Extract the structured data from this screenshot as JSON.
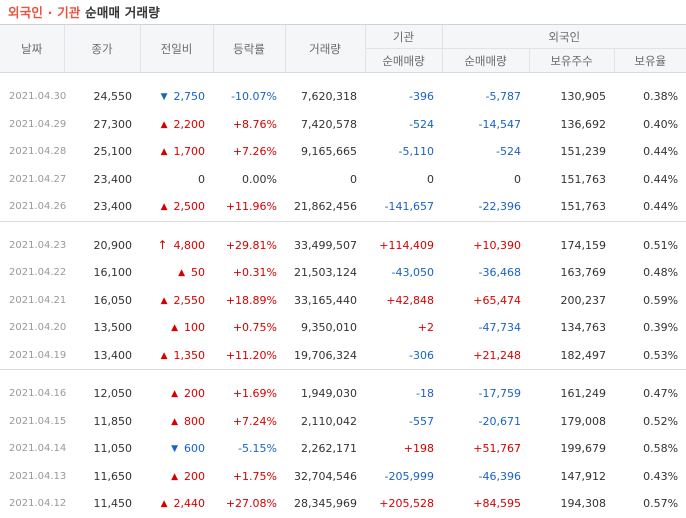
{
  "header": {
    "title_part1": "외국인",
    "separator": "·",
    "title_part2": "기관",
    "title_part3": "순매매 거래량"
  },
  "columns": {
    "date": "날짜",
    "close": "종가",
    "change": "전일비",
    "rate": "등락률",
    "volume": "거래량",
    "inst_group": "기관",
    "foreign_group": "외국인",
    "inst_net": "순매매량",
    "foreign_net": "순매매량",
    "foreign_holdings": "보유주수",
    "foreign_ratio": "보유율"
  },
  "colors": {
    "up": "#d60000",
    "down": "#1a62c7",
    "title_accent": "#e8543f"
  },
  "groups": [
    [
      {
        "date": "2021.04.30",
        "close": "24,550",
        "dir": "down",
        "arrow": "▼",
        "change": "2,750",
        "rate": "-10.07%",
        "volume": "7,620,318",
        "inst": "-396",
        "foreign": "-5,787",
        "holdings": "130,905",
        "ratio": "0.38%"
      },
      {
        "date": "2021.04.29",
        "close": "27,300",
        "dir": "up",
        "arrow": "▲",
        "change": "2,200",
        "rate": "+8.76%",
        "volume": "7,420,578",
        "inst": "-524",
        "foreign": "-14,547",
        "holdings": "136,692",
        "ratio": "0.40%"
      },
      {
        "date": "2021.04.28",
        "close": "25,100",
        "dir": "up",
        "arrow": "▲",
        "change": "1,700",
        "rate": "+7.26%",
        "volume": "9,165,665",
        "inst": "-5,110",
        "foreign": "-524",
        "holdings": "151,239",
        "ratio": "0.44%"
      },
      {
        "date": "2021.04.27",
        "close": "23,400",
        "dir": "neu",
        "arrow": "",
        "change": "0",
        "rate": "0.00%",
        "volume": "0",
        "inst": "0",
        "foreign": "0",
        "holdings": "151,763",
        "ratio": "0.44%"
      },
      {
        "date": "2021.04.26",
        "close": "23,400",
        "dir": "up",
        "arrow": "▲",
        "change": "2,500",
        "rate": "+11.96%",
        "volume": "21,862,456",
        "inst": "-141,657",
        "foreign": "-22,396",
        "holdings": "151,763",
        "ratio": "0.44%"
      }
    ],
    [
      {
        "date": "2021.04.23",
        "close": "20,900",
        "dir": "up",
        "arrow": "↑",
        "limit": true,
        "change": "4,800",
        "rate": "+29.81%",
        "volume": "33,499,507",
        "inst": "+114,409",
        "foreign": "+10,390",
        "holdings": "174,159",
        "ratio": "0.51%"
      },
      {
        "date": "2021.04.22",
        "close": "16,100",
        "dir": "up",
        "arrow": "▲",
        "change": "50",
        "rate": "+0.31%",
        "volume": "21,503,124",
        "inst": "-43,050",
        "foreign": "-36,468",
        "holdings": "163,769",
        "ratio": "0.48%"
      },
      {
        "date": "2021.04.21",
        "close": "16,050",
        "dir": "up",
        "arrow": "▲",
        "change": "2,550",
        "rate": "+18.89%",
        "volume": "33,165,440",
        "inst": "+42,848",
        "foreign": "+65,474",
        "holdings": "200,237",
        "ratio": "0.59%"
      },
      {
        "date": "2021.04.20",
        "close": "13,500",
        "dir": "up",
        "arrow": "▲",
        "change": "100",
        "rate": "+0.75%",
        "volume": "9,350,010",
        "inst": "+2",
        "foreign": "-47,734",
        "holdings": "134,763",
        "ratio": "0.39%"
      },
      {
        "date": "2021.04.19",
        "close": "13,400",
        "dir": "up",
        "arrow": "▲",
        "change": "1,350",
        "rate": "+11.20%",
        "volume": "19,706,324",
        "inst": "-306",
        "foreign": "+21,248",
        "holdings": "182,497",
        "ratio": "0.53%"
      }
    ],
    [
      {
        "date": "2021.04.16",
        "close": "12,050",
        "dir": "up",
        "arrow": "▲",
        "change": "200",
        "rate": "+1.69%",
        "volume": "1,949,030",
        "inst": "-18",
        "foreign": "-17,759",
        "holdings": "161,249",
        "ratio": "0.47%"
      },
      {
        "date": "2021.04.15",
        "close": "11,850",
        "dir": "up",
        "arrow": "▲",
        "change": "800",
        "rate": "+7.24%",
        "volume": "2,110,042",
        "inst": "-557",
        "foreign": "-20,671",
        "holdings": "179,008",
        "ratio": "0.52%"
      },
      {
        "date": "2021.04.14",
        "close": "11,050",
        "dir": "down",
        "arrow": "▼",
        "change": "600",
        "rate": "-5.15%",
        "volume": "2,262,171",
        "inst": "+198",
        "foreign": "+51,767",
        "holdings": "199,679",
        "ratio": "0.58%"
      },
      {
        "date": "2021.04.13",
        "close": "11,650",
        "dir": "up",
        "arrow": "▲",
        "change": "200",
        "rate": "+1.75%",
        "volume": "32,704,546",
        "inst": "-205,999",
        "foreign": "-46,396",
        "holdings": "147,912",
        "ratio": "0.43%"
      },
      {
        "date": "2021.04.12",
        "close": "11,450",
        "dir": "up",
        "arrow": "▲",
        "change": "2,440",
        "rate": "+27.08%",
        "volume": "28,345,969",
        "inst": "+205,528",
        "foreign": "+84,595",
        "holdings": "194,308",
        "ratio": "0.57%"
      }
    ]
  ]
}
